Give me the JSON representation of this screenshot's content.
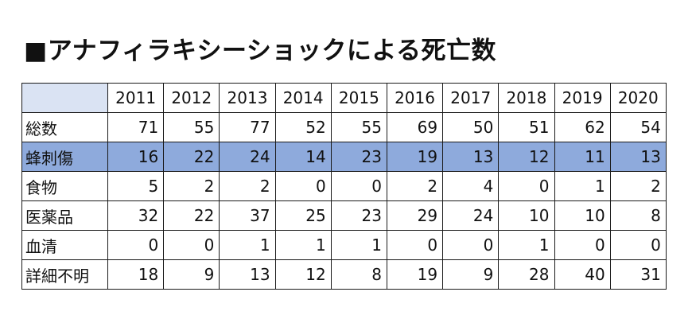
{
  "title": "■アナフィラキシーショックによる死亡数",
  "table": {
    "years": [
      "2011",
      "2012",
      "2013",
      "2014",
      "2015",
      "2016",
      "2017",
      "2018",
      "2019",
      "2020"
    ],
    "rows": [
      {
        "label": "総数",
        "values": [
          "71",
          "55",
          "77",
          "52",
          "55",
          "69",
          "50",
          "51",
          "62",
          "54"
        ],
        "highlight": false
      },
      {
        "label": "蜂刺傷",
        "values": [
          "16",
          "22",
          "24",
          "14",
          "23",
          "19",
          "13",
          "12",
          "11",
          "13"
        ],
        "highlight": true
      },
      {
        "label": "食物",
        "values": [
          "5",
          "2",
          "2",
          "0",
          "0",
          "2",
          "4",
          "0",
          "1",
          "2"
        ],
        "highlight": false
      },
      {
        "label": "医薬品",
        "values": [
          "32",
          "22",
          "37",
          "25",
          "23",
          "29",
          "24",
          "10",
          "10",
          "8"
        ],
        "highlight": false
      },
      {
        "label": "血清",
        "values": [
          "0",
          "0",
          "1",
          "1",
          "1",
          "0",
          "0",
          "1",
          "0",
          "0"
        ],
        "highlight": false
      },
      {
        "label": "詳細不明",
        "values": [
          "18",
          "9",
          "13",
          "12",
          "8",
          "19",
          "9",
          "28",
          "40",
          "31"
        ],
        "highlight": false
      }
    ],
    "colors": {
      "header_corner": "#dae3f3",
      "highlight_row": "#8eaadc",
      "border": "#1a1a1a"
    }
  }
}
